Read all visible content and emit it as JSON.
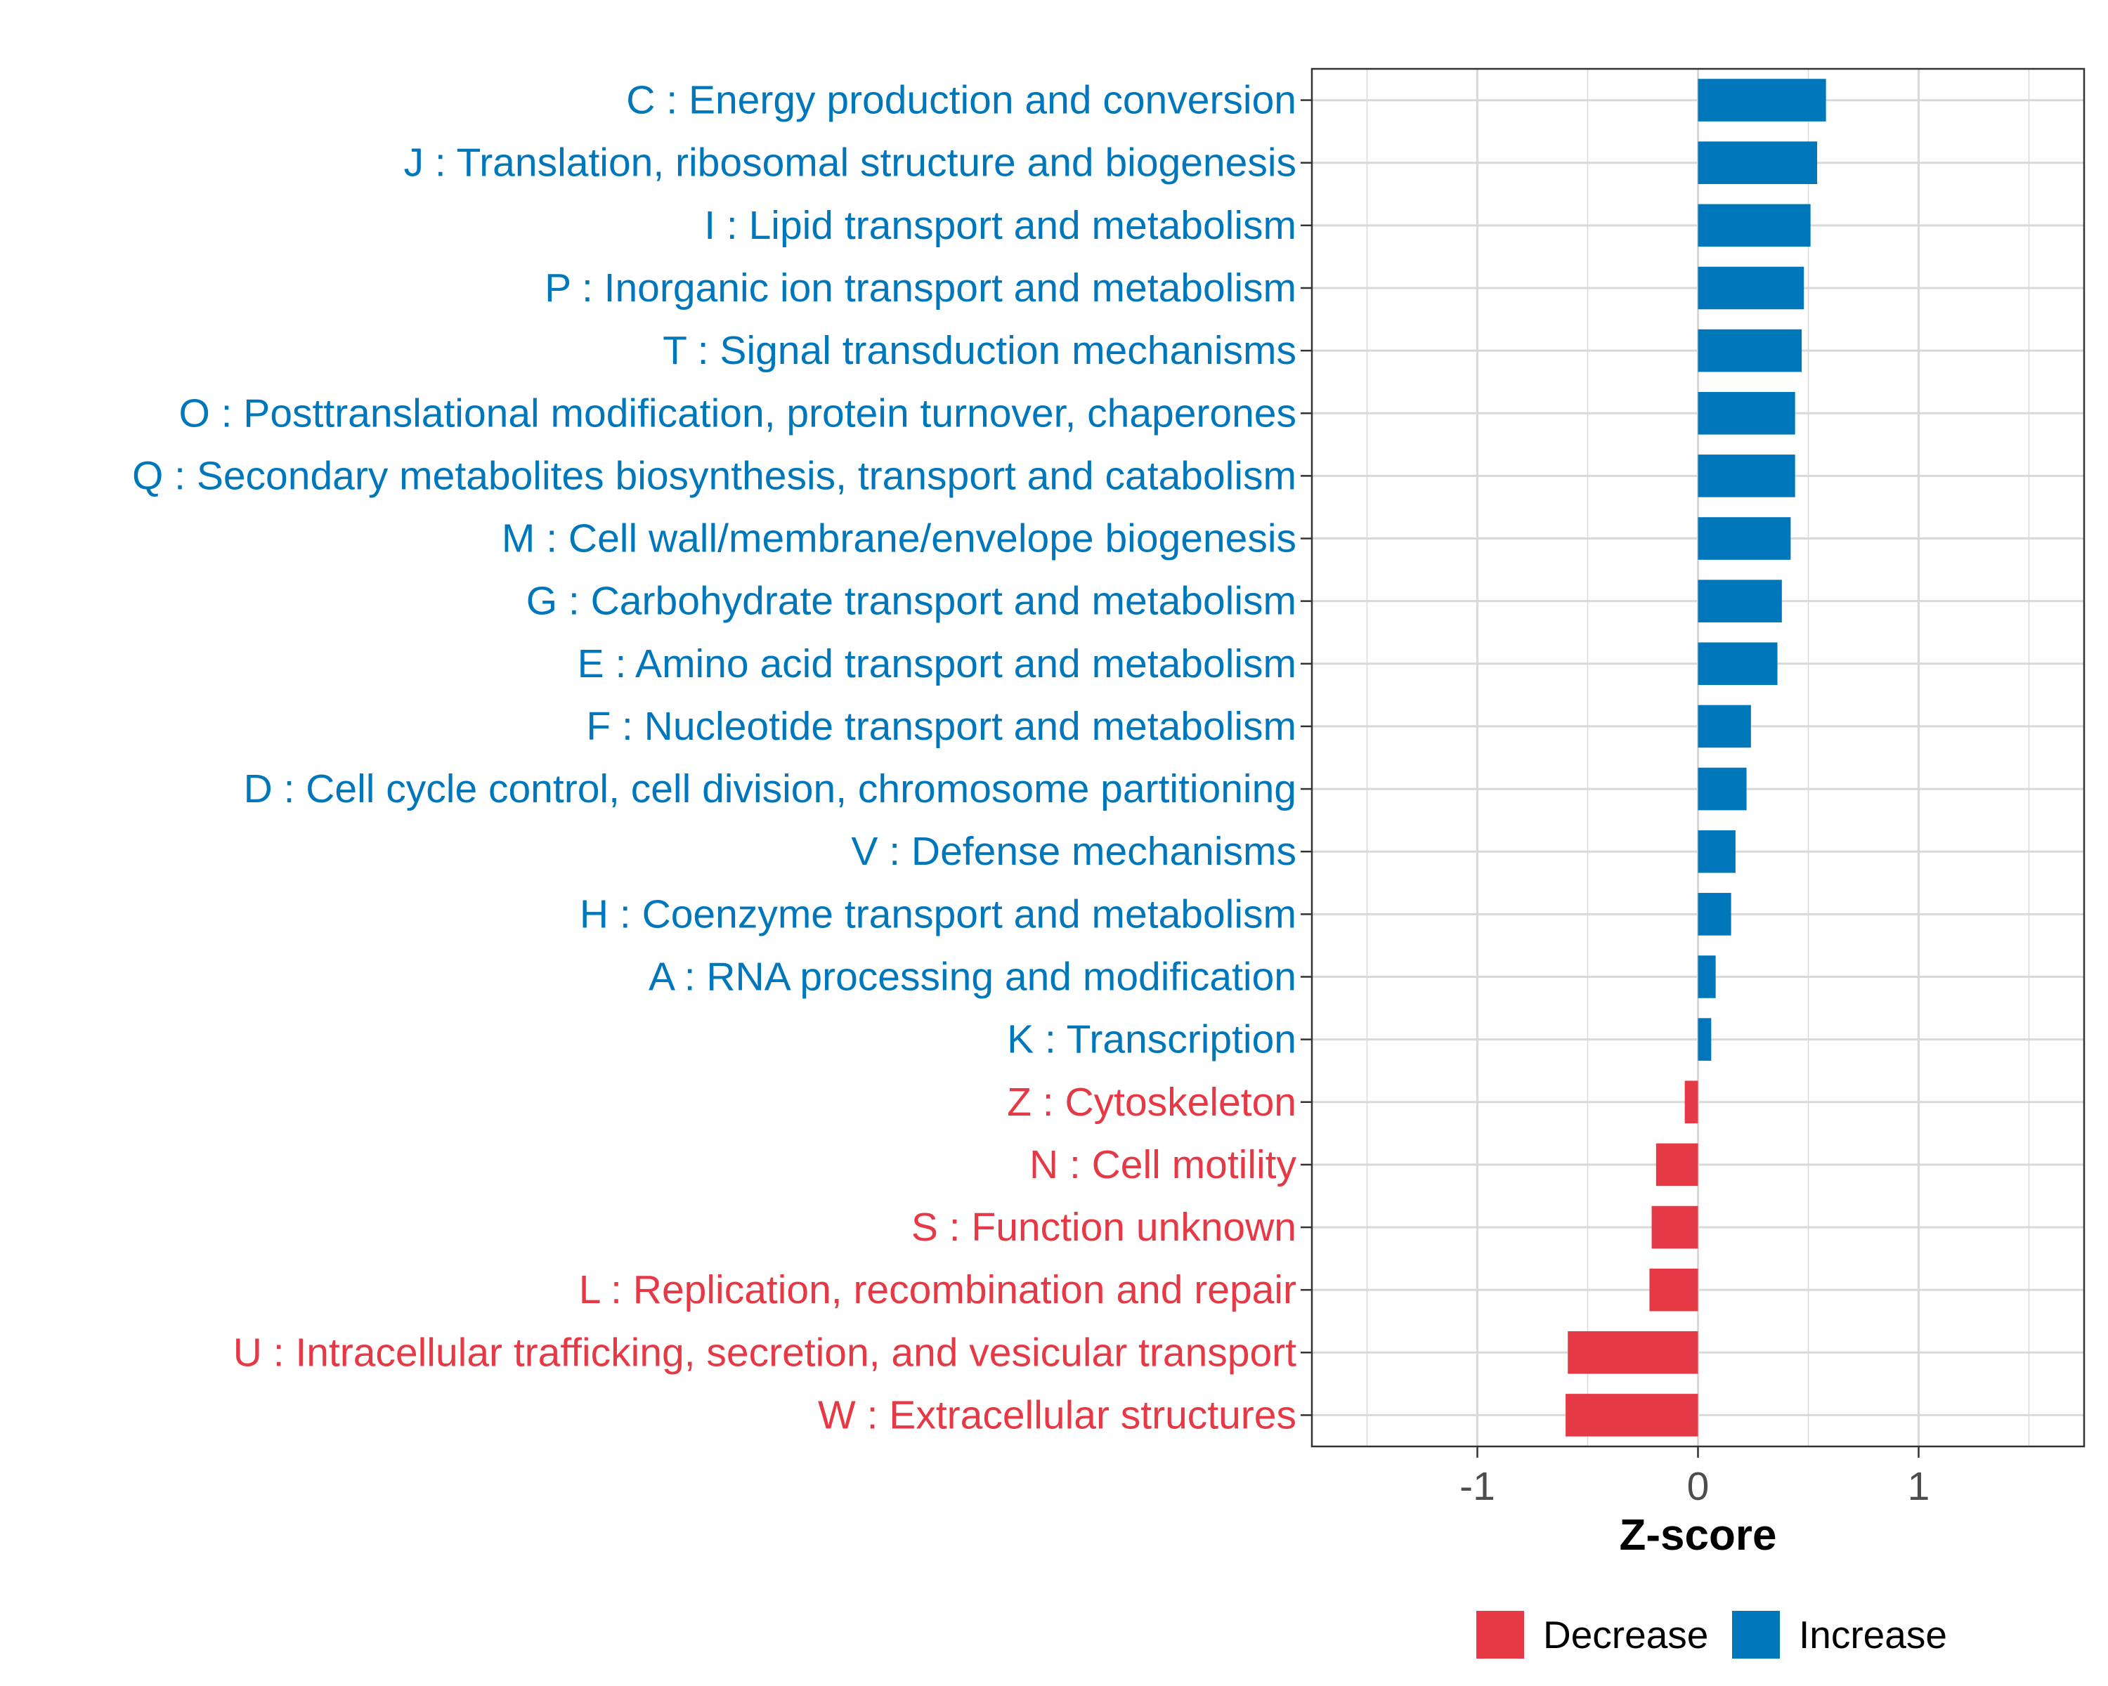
{
  "colors": {
    "increase": "#0077BB",
    "decrease": "#E63946",
    "grid": "#D9D9D9",
    "axis_text": "#4D4D4D",
    "panel_border": "#333333",
    "title_text": "#000000"
  },
  "chart_data": {
    "type": "bar",
    "orientation": "horizontal",
    "title": "",
    "xlabel": "Z-score",
    "ylabel": "",
    "xlim": [
      -1.75,
      1.75
    ],
    "x_ticks": [
      -1,
      0,
      1
    ],
    "x_tick_labels": [
      "-1",
      "0",
      "1"
    ],
    "grid": true,
    "legend_position": "bottom",
    "legend": [
      {
        "name": "Decrease",
        "color_key": "decrease"
      },
      {
        "name": "Increase",
        "color_key": "increase"
      }
    ],
    "categories": [
      "C : Energy production and conversion",
      "J : Translation, ribosomal structure and biogenesis",
      "I : Lipid transport and metabolism",
      "P : Inorganic ion transport and metabolism",
      "T : Signal transduction mechanisms",
      "O : Posttranslational modification, protein turnover, chaperones",
      "Q : Secondary metabolites biosynthesis, transport and catabolism",
      "M : Cell wall/membrane/envelope biogenesis",
      "G : Carbohydrate transport and metabolism",
      "E : Amino acid transport and metabolism",
      "F : Nucleotide transport and metabolism",
      "D : Cell cycle control, cell division, chromosome partitioning",
      "V : Defense mechanisms",
      "H : Coenzyme transport and metabolism",
      "A : RNA processing and modification",
      "K : Transcription",
      "Z : Cytoskeleton",
      "N : Cell motility",
      "S : Function unknown",
      "L : Replication, recombination and repair",
      "U : Intracellular trafficking, secretion, and vesicular transport",
      "W : Extracellular structures"
    ],
    "values": [
      0.58,
      0.54,
      0.51,
      0.48,
      0.47,
      0.44,
      0.44,
      0.42,
      0.38,
      0.36,
      0.24,
      0.22,
      0.17,
      0.15,
      0.08,
      0.06,
      -0.06,
      -0.19,
      -0.21,
      -0.22,
      -0.59,
      -0.6
    ],
    "groups": [
      "Increase",
      "Increase",
      "Increase",
      "Increase",
      "Increase",
      "Increase",
      "Increase",
      "Increase",
      "Increase",
      "Increase",
      "Increase",
      "Increase",
      "Increase",
      "Increase",
      "Increase",
      "Increase",
      "Decrease",
      "Decrease",
      "Decrease",
      "Decrease",
      "Decrease",
      "Decrease"
    ]
  }
}
